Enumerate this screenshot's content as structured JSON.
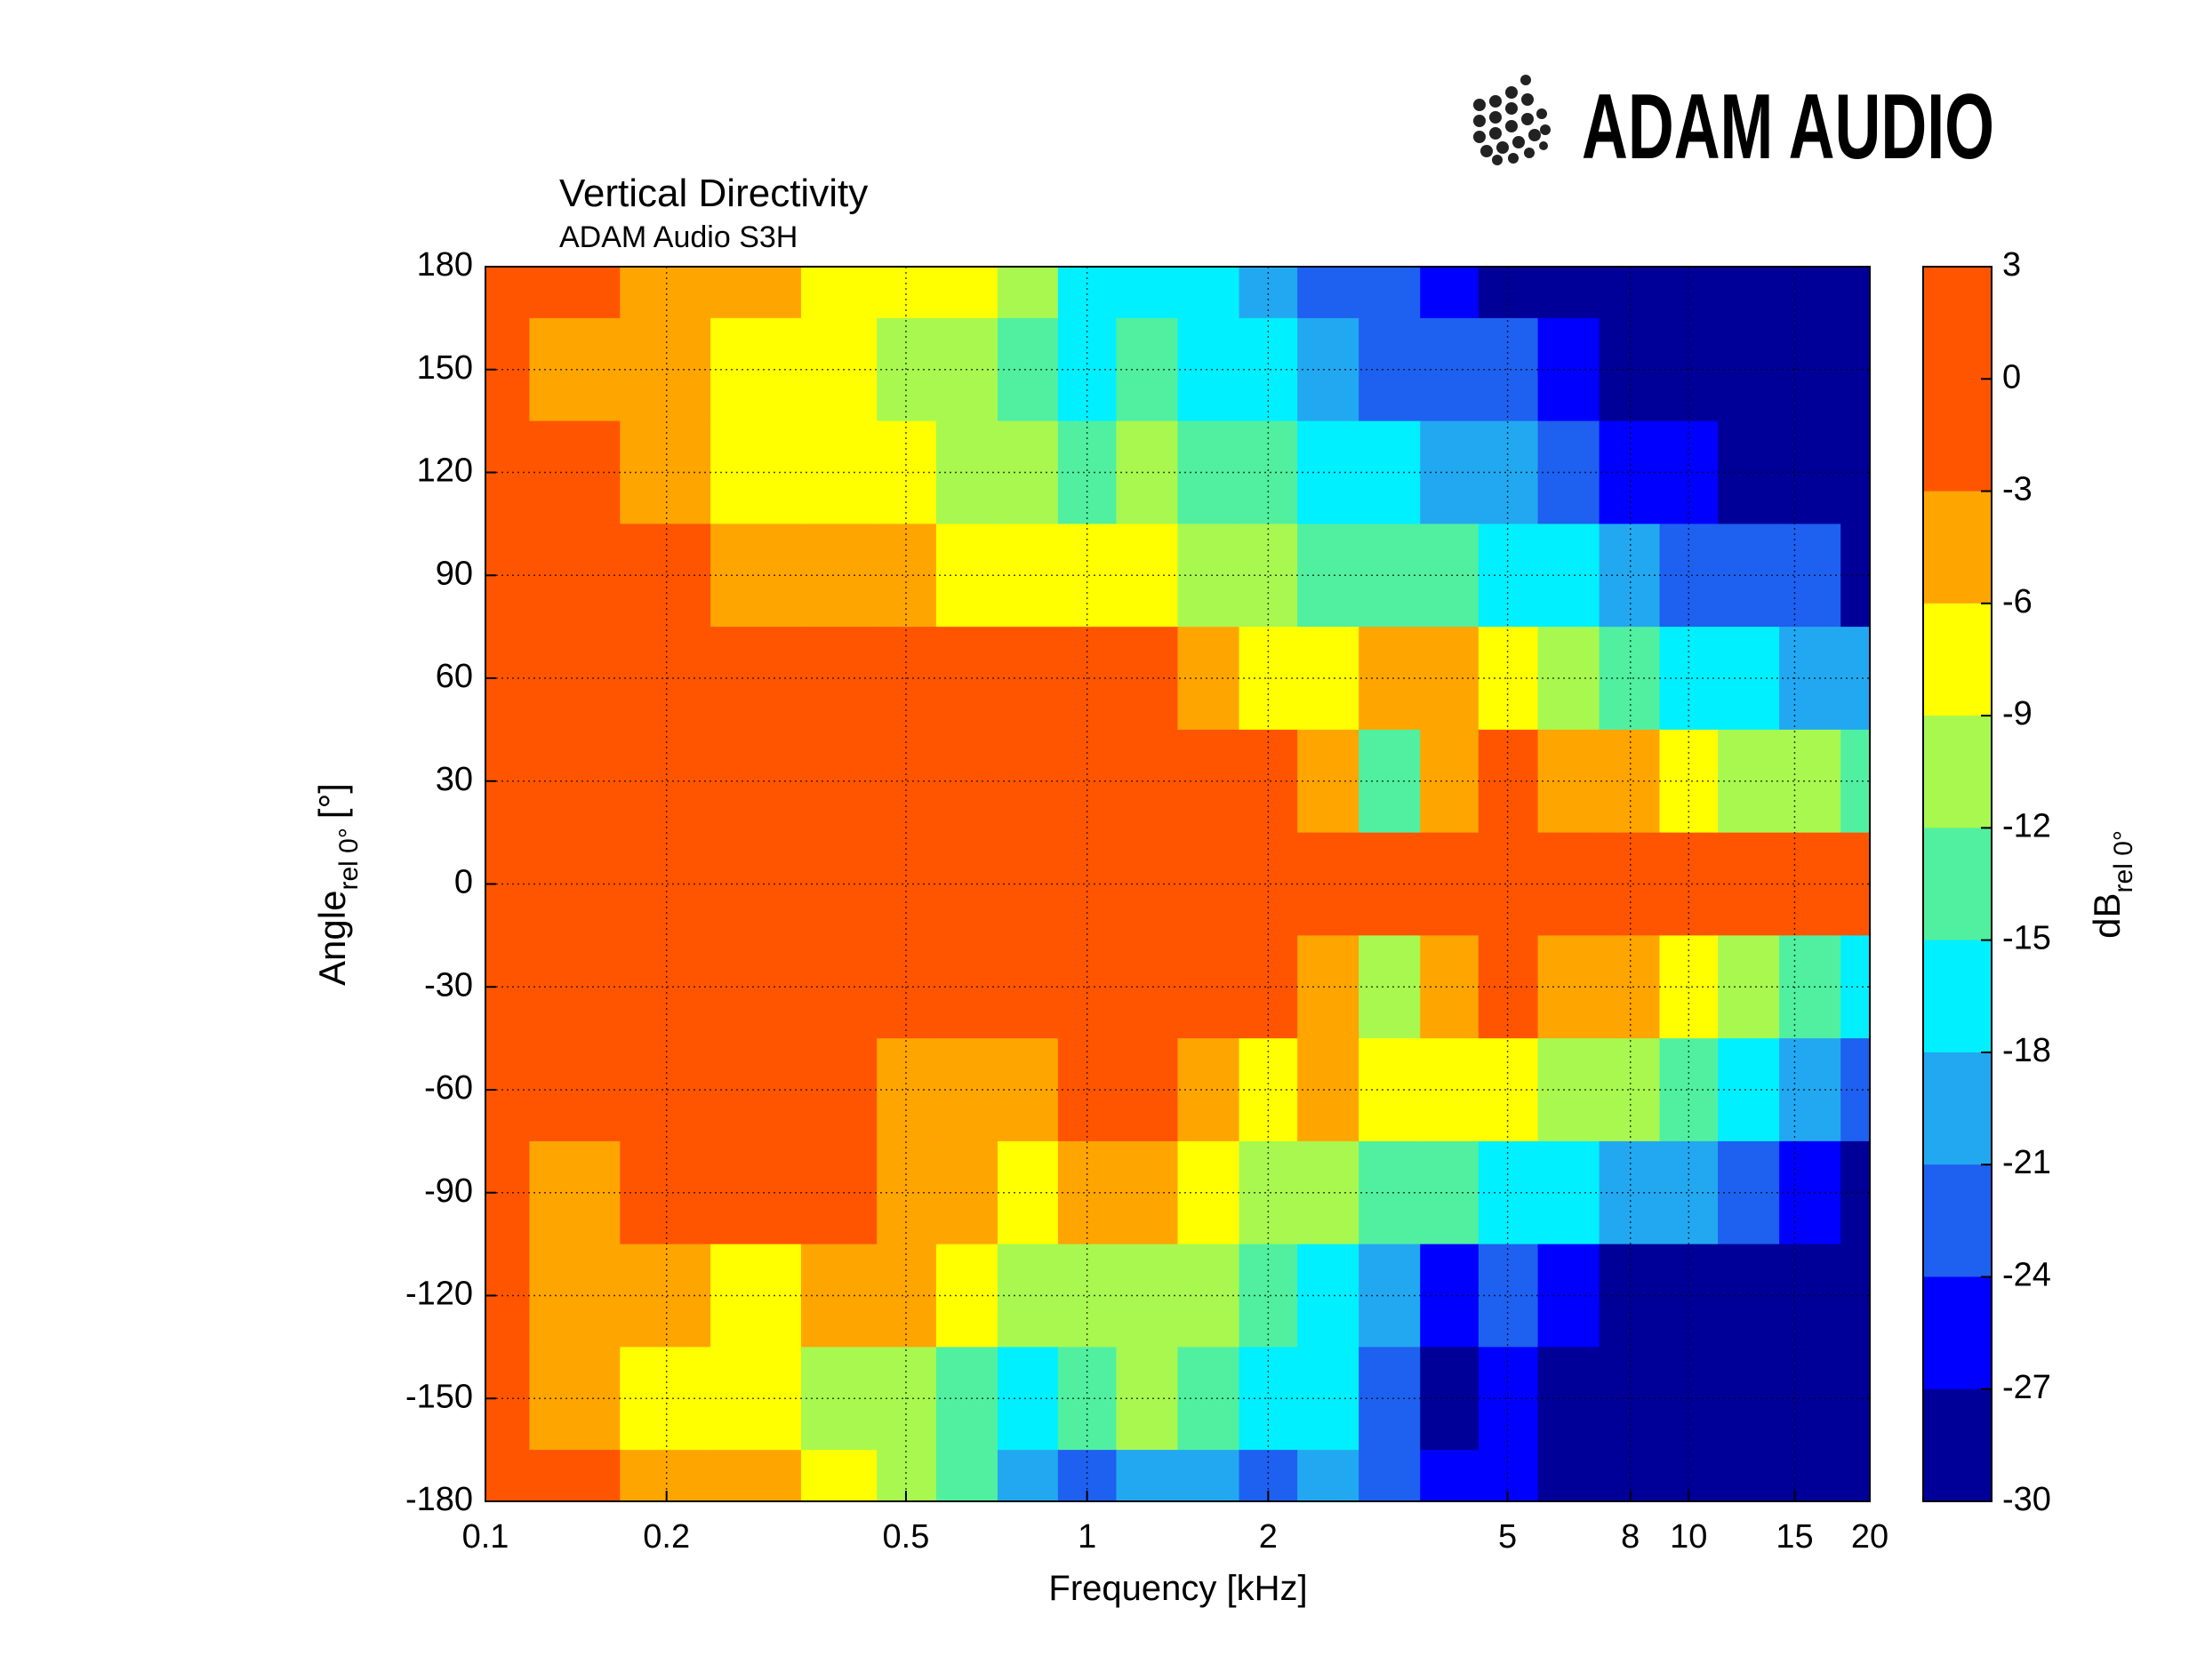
{
  "logo": "ADAM AUDIO",
  "chart_data": {
    "type": "contour",
    "title": "Vertical Directivity",
    "subtitle": "ADAM Audio S3H",
    "x_label": "Frequency [kHz]",
    "y_label": "Angle",
    "y_label_sub": "rel 0°",
    "y_label_unit": "[°]",
    "x_log": true,
    "grid": true,
    "xlim": [
      0.1,
      20
    ],
    "xticks": [
      0.1,
      0.2,
      0.5,
      1,
      2,
      5,
      8,
      10,
      15,
      20
    ],
    "ylim": [
      -180,
      180
    ],
    "yticks": [
      180,
      150,
      120,
      90,
      60,
      30,
      0,
      -30,
      -60,
      -90,
      -120,
      -150,
      -180
    ],
    "x": [
      0.1,
      0.14,
      0.2,
      0.28,
      0.4,
      0.5,
      0.63,
      0.8,
      1,
      1.25,
      1.6,
      2,
      2.5,
      3.2,
      4,
      5,
      6.3,
      8,
      10,
      12.5,
      16,
      20
    ],
    "y": [
      180,
      150,
      120,
      90,
      60,
      30,
      0,
      -30,
      -60,
      -90,
      -120,
      -150,
      -180
    ],
    "z": [
      [
        -1,
        -1,
        -4,
        -4,
        -7,
        -7,
        -7,
        -10,
        -16,
        -16,
        -16,
        -19,
        -22,
        -22,
        -25,
        -28,
        -28,
        -28,
        -28,
        -28,
        -28,
        -28
      ],
      [
        -1,
        -4,
        -4,
        -7,
        -7,
        -10,
        -10,
        -13,
        -16,
        -13,
        -16,
        -16,
        -19,
        -22,
        -22,
        -22,
        -25,
        -28,
        -28,
        -28,
        -28,
        -28
      ],
      [
        -1,
        -1,
        -4,
        -7,
        -7,
        -7,
        -10,
        -10,
        -13,
        -10,
        -13,
        -13,
        -16,
        -16,
        -19,
        -19,
        -22,
        -25,
        -25,
        -28,
        -28,
        -28
      ],
      [
        -1,
        -1,
        -1,
        -4,
        -4,
        -4,
        -7,
        -7,
        -7,
        -7,
        -10,
        -10,
        -13,
        -13,
        -13,
        -16,
        -16,
        -19,
        -22,
        -22,
        -22,
        -28
      ],
      [
        -1,
        -1,
        -1,
        -1,
        -1,
        -1,
        -1,
        -1,
        -1,
        -1,
        -4,
        -7,
        -7,
        -4,
        -4,
        -7,
        -10,
        -13,
        -16,
        -16,
        -19,
        -19
      ],
      [
        -1,
        -1,
        -1,
        -1,
        -1,
        -1,
        -1,
        -1,
        -1,
        -1,
        -1,
        -1,
        -4,
        -13,
        -4,
        -1,
        -4,
        -4,
        -7,
        -10,
        -10,
        -13
      ],
      [
        -1,
        -1,
        -1,
        -1,
        -1,
        -1,
        -1,
        -1,
        -1,
        -1,
        -1,
        -1,
        -1,
        -1,
        -1,
        -1,
        -1,
        -1,
        -1,
        -1,
        -1,
        -1
      ],
      [
        -1,
        -1,
        -1,
        -1,
        -1,
        -1,
        -1,
        -1,
        -1,
        -1,
        -1,
        -1,
        -4,
        -10,
        -4,
        -1,
        -4,
        -4,
        -7,
        -10,
        -13,
        -16
      ],
      [
        -1,
        -1,
        -1,
        -1,
        -1,
        -4,
        -4,
        -4,
        -1,
        -1,
        -4,
        -7,
        -4,
        -7,
        -7,
        -7,
        -10,
        -10,
        -13,
        -16,
        -19,
        -22
      ],
      [
        -1,
        -4,
        -1,
        -1,
        -1,
        -4,
        -4,
        -7,
        -4,
        -4,
        -7,
        -10,
        -10,
        -13,
        -13,
        -16,
        -16,
        -19,
        -19,
        -22,
        -25,
        -28
      ],
      [
        -1,
        -4,
        -4,
        -7,
        -4,
        -4,
        -7,
        -10,
        -10,
        -10,
        -10,
        -13,
        -16,
        -19,
        -25,
        -22,
        -25,
        -28,
        -28,
        -28,
        -28,
        -28
      ],
      [
        -1,
        -4,
        -7,
        -7,
        -10,
        -10,
        -13,
        -16,
        -13,
        -10,
        -13,
        -16,
        -16,
        -22,
        -28,
        -25,
        -28,
        -28,
        -28,
        -28,
        -28,
        -28
      ],
      [
        -1,
        -1,
        -4,
        -4,
        -7,
        -10,
        -13,
        -19,
        -22,
        -19,
        -19,
        -22,
        -19,
        -22,
        -25,
        -25,
        -28,
        -28,
        -28,
        -28,
        -28,
        -28
      ]
    ],
    "colorbar": {
      "label": "dB",
      "label_sub": "rel 0°",
      "ticks": [
        3,
        0,
        -3,
        -6,
        -9,
        -12,
        -15,
        -18,
        -21,
        -24,
        -27,
        -30
      ],
      "colors": [
        "#ff5500",
        "#ff5500",
        "#ffa500",
        "#ffff00",
        "#a8f850",
        "#50f0a0",
        "#00f0ff",
        "#22a8f0",
        "#1e60f0",
        "#0000ff",
        "#000099"
      ]
    }
  }
}
